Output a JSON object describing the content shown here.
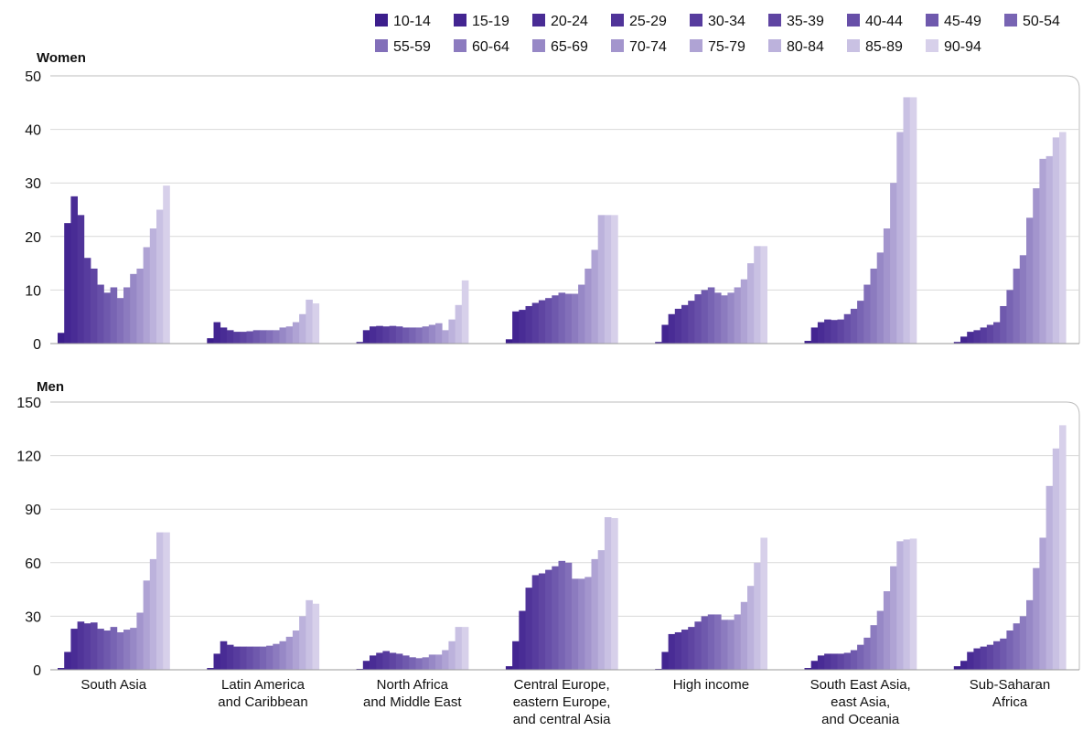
{
  "chart_data": [
    {
      "type": "bar",
      "title": "Women",
      "ylim": [
        0,
        50
      ],
      "yticks": [
        "0",
        "10",
        "20",
        "30",
        "40",
        "50"
      ],
      "grid": true,
      "categories": [
        "South Asia",
        "Latin America and Caribbean",
        "North Africa and Middle East",
        "Central Europe, eastern Europe, and central Asia",
        "High income",
        "South East Asia, east Asia, and Oceania",
        "Sub-Saharan Africa"
      ],
      "series_labels": [
        "10-14",
        "15-19",
        "20-24",
        "25-29",
        "30-34",
        "35-39",
        "40-44",
        "45-49",
        "50-54",
        "55-59",
        "60-64",
        "65-69",
        "70-74",
        "75-79",
        "80-84",
        "85-89",
        "90-94"
      ],
      "values": [
        [
          2,
          22.5,
          27.5,
          24,
          16,
          14,
          11,
          9.5,
          10.5,
          8.5,
          10.5,
          13,
          14,
          18,
          21.5,
          25,
          29.5
        ],
        [
          1,
          4,
          3,
          2.5,
          2.2,
          2.2,
          2.3,
          2.5,
          2.5,
          2.5,
          2.5,
          3,
          3.2,
          4,
          5.5,
          8.2,
          7.5
        ],
        [
          0.3,
          2.5,
          3.2,
          3.3,
          3.2,
          3.3,
          3.2,
          3,
          3,
          3,
          3.2,
          3.5,
          3.8,
          2.5,
          4.5,
          7.2,
          11.8
        ],
        [
          0.8,
          6,
          6.3,
          7,
          7.6,
          8.1,
          8.5,
          9,
          9.5,
          9.3,
          9.3,
          11,
          14,
          17.5,
          24,
          24,
          24
        ],
        [
          0.3,
          3.5,
          5.5,
          6.5,
          7.2,
          8,
          9.2,
          10,
          10.5,
          9.5,
          9,
          9.5,
          10.5,
          12,
          15,
          18.2,
          18.2
        ],
        [
          0.5,
          3,
          4,
          4.5,
          4.4,
          4.5,
          5.5,
          6.5,
          8,
          11,
          14,
          17,
          21.5,
          30,
          39.5,
          46,
          46
        ],
        [
          0.3,
          1.3,
          2.2,
          2.5,
          3,
          3.5,
          4,
          7,
          10,
          14,
          16.5,
          23.5,
          29,
          34.5,
          35,
          38.5,
          39.5
        ]
      ]
    },
    {
      "type": "bar",
      "title": "Men",
      "ylim": [
        0,
        150
      ],
      "yticks": [
        "0",
        "30",
        "60",
        "90",
        "120",
        "150"
      ],
      "grid": true,
      "categories": [
        "South Asia",
        "Latin America and Caribbean",
        "North Africa and Middle East",
        "Central Europe, eastern Europe, and central Asia",
        "High income",
        "South East Asia, east Asia, and Oceania",
        "Sub-Saharan Africa"
      ],
      "series_labels": [
        "10-14",
        "15-19",
        "20-24",
        "25-29",
        "30-34",
        "35-39",
        "40-44",
        "45-49",
        "50-54",
        "55-59",
        "60-64",
        "65-69",
        "70-74",
        "75-79",
        "80-84",
        "85-89",
        "90-94"
      ],
      "values": [
        [
          1,
          10,
          23,
          27,
          26,
          26.5,
          23,
          22,
          24,
          21,
          22.5,
          23.5,
          32,
          50,
          62,
          77,
          77
        ],
        [
          1,
          9,
          16,
          14,
          13,
          13,
          13,
          13,
          13,
          13.5,
          14.5,
          16,
          18.5,
          22,
          30,
          39,
          37
        ],
        [
          0.5,
          5,
          8,
          9.5,
          10.5,
          9.5,
          9,
          8,
          7,
          6.5,
          7,
          8.5,
          8.5,
          11,
          16,
          24,
          24
        ],
        [
          2,
          16,
          33,
          46,
          53,
          54,
          56,
          58,
          61,
          60,
          51,
          51,
          52,
          62,
          67,
          85.5,
          85
        ],
        [
          0.5,
          10,
          20,
          21,
          22.5,
          24,
          27,
          30,
          31,
          31,
          28,
          28,
          31,
          38,
          47,
          60,
          74
        ],
        [
          1,
          5,
          8,
          9,
          9,
          9,
          9.5,
          11,
          14,
          18,
          25,
          33,
          44,
          58,
          72,
          73,
          73.5
        ],
        [
          2,
          5,
          10,
          12,
          13,
          14,
          16,
          17.5,
          22,
          26,
          30,
          39,
          57,
          74,
          103,
          124,
          137
        ]
      ]
    }
  ],
  "axis": {
    "category_labels": [
      [
        "South Asia"
      ],
      [
        "Latin America",
        "and Caribbean"
      ],
      [
        "North Africa",
        "and Middle East"
      ],
      [
        "Central Europe,",
        "eastern Europe,",
        "and central Asia"
      ],
      [
        "High income"
      ],
      [
        "South East Asia,",
        "east Asia,",
        "and Oceania"
      ],
      [
        "Sub-Saharan",
        "Africa"
      ]
    ]
  },
  "legend": {
    "placement": "top-right",
    "items": [
      "10-14",
      "15-19",
      "20-24",
      "25-29",
      "30-34",
      "35-39",
      "40-44",
      "45-49",
      "50-54",
      "55-59",
      "60-64",
      "65-69",
      "70-74",
      "75-79",
      "80-84",
      "85-89",
      "90-94"
    ]
  },
  "colors": [
    "#3c1e8c",
    "#432591",
    "#492c95",
    "#503499",
    "#573c9e",
    "#5f45a2",
    "#674fa8",
    "#6f59ad",
    "#7864b3",
    "#826fb9",
    "#8c7bbf",
    "#9788c6",
    "#a395cd",
    "#afa3d4",
    "#bcb2dc",
    "#c9c1e3",
    "#d7d0ea"
  ]
}
